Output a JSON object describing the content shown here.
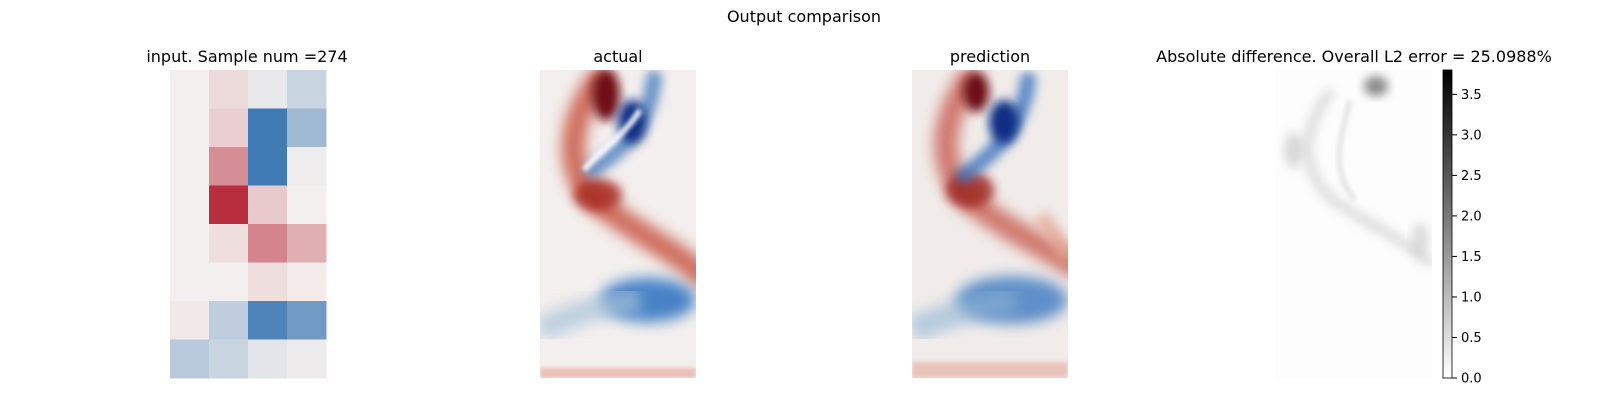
{
  "chart_data": {
    "type": "heatmap",
    "title": "Output comparison",
    "panels": [
      {
        "title": "input. Sample num =274",
        "grid": [
          [
            0.0,
            0.1,
            -0.05,
            -0.2
          ],
          [
            0.0,
            0.15,
            -0.85,
            -0.4
          ],
          [
            0.0,
            0.45,
            -0.85,
            -0.02
          ],
          [
            0.0,
            0.9,
            0.18,
            0.0
          ],
          [
            0.0,
            0.08,
            0.5,
            0.3
          ],
          [
            0.0,
            0.0,
            0.08,
            0.02
          ],
          [
            0.03,
            -0.25,
            -0.78,
            -0.62
          ],
          [
            -0.28,
            -0.2,
            -0.08,
            -0.03
          ]
        ]
      },
      {
        "title": "actual"
      },
      {
        "title": "prediction"
      },
      {
        "title": "Absolute difference. Overall L2 error = 25.0988%",
        "colorbar": {
          "ticks": [
            "0.0",
            "0.5",
            "1.0",
            "1.5",
            "2.0",
            "2.5",
            "3.0",
            "3.5"
          ],
          "tick_values": [
            0.0,
            0.5,
            1.0,
            1.5,
            2.0,
            2.5,
            3.0,
            3.5
          ],
          "range": [
            0,
            3.8
          ]
        }
      }
    ],
    "colormaps": {
      "field": [
        "#2166ac",
        "#f3efee",
        "#b2182b"
      ],
      "difference": [
        "#ffffff",
        "#000000"
      ]
    },
    "grid": false,
    "legend": "none"
  }
}
